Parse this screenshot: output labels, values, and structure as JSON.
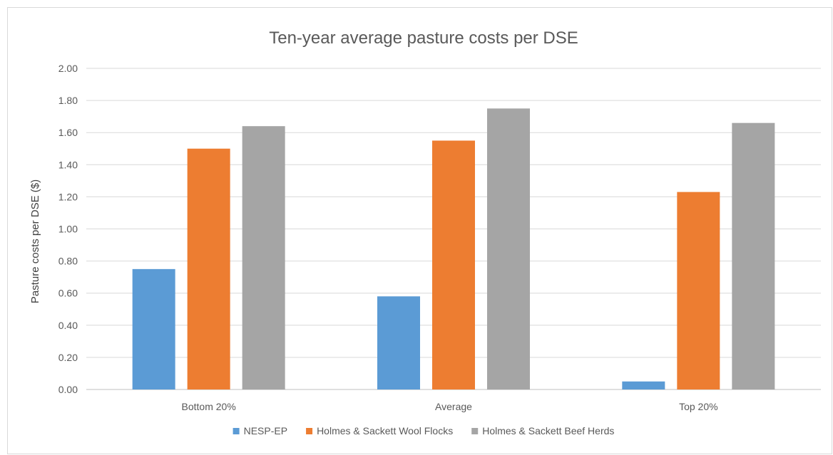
{
  "chart_data": {
    "type": "bar",
    "title": "Ten-year average pasture costs per DSE",
    "xlabel": "",
    "ylabel": "Pasture costs per DSE ($)",
    "categories": [
      "Bottom 20%",
      "Average",
      "Top 20%"
    ],
    "series": [
      {
        "name": "NESP-EP",
        "color": "#5b9bd5",
        "values": [
          0.75,
          0.58,
          0.05
        ]
      },
      {
        "name": "Holmes & Sackett Wool Flocks",
        "color": "#ed7d31",
        "values": [
          1.5,
          1.55,
          1.23
        ]
      },
      {
        "name": "Holmes & Sackett Beef Herds",
        "color": "#a5a5a5",
        "values": [
          1.64,
          1.75,
          1.66
        ]
      }
    ],
    "ylim": [
      0,
      2.0
    ],
    "yticks": [
      "0.00",
      "0.20",
      "0.40",
      "0.60",
      "0.80",
      "1.00",
      "1.20",
      "1.40",
      "1.60",
      "1.80",
      "2.00"
    ],
    "grid": true,
    "legend_position": "bottom"
  }
}
